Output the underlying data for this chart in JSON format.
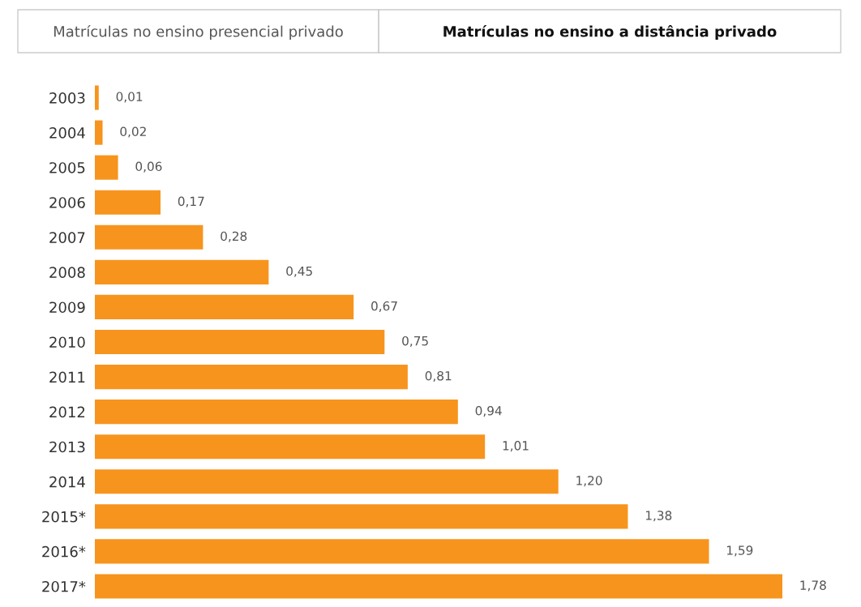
{
  "chart_data": {
    "type": "bar",
    "orientation": "horizontal",
    "title": "Matrículas no ensino a distância privado",
    "annotations": [
      "Matrículas no ensino presencial privado"
    ],
    "categories": [
      "2003",
      "2004",
      "2005",
      "2006",
      "2007",
      "2008",
      "2009",
      "2010",
      "2011",
      "2012",
      "2013",
      "2014",
      "2015*",
      "2016*",
      "2017*"
    ],
    "values": [
      0.01,
      0.02,
      0.06,
      0.17,
      0.28,
      0.45,
      0.67,
      0.75,
      0.81,
      0.94,
      1.01,
      1.2,
      1.38,
      1.59,
      1.78
    ],
    "value_labels": [
      "0,01",
      "0,02",
      "0,06",
      "0,17",
      "0,28",
      "0,45",
      "0,67",
      "0,75",
      "0,81",
      "0,94",
      "1,01",
      "1,20",
      "1,38",
      "1,59",
      "1,78"
    ],
    "color": "#f7941d",
    "grid": false,
    "legend": false
  }
}
